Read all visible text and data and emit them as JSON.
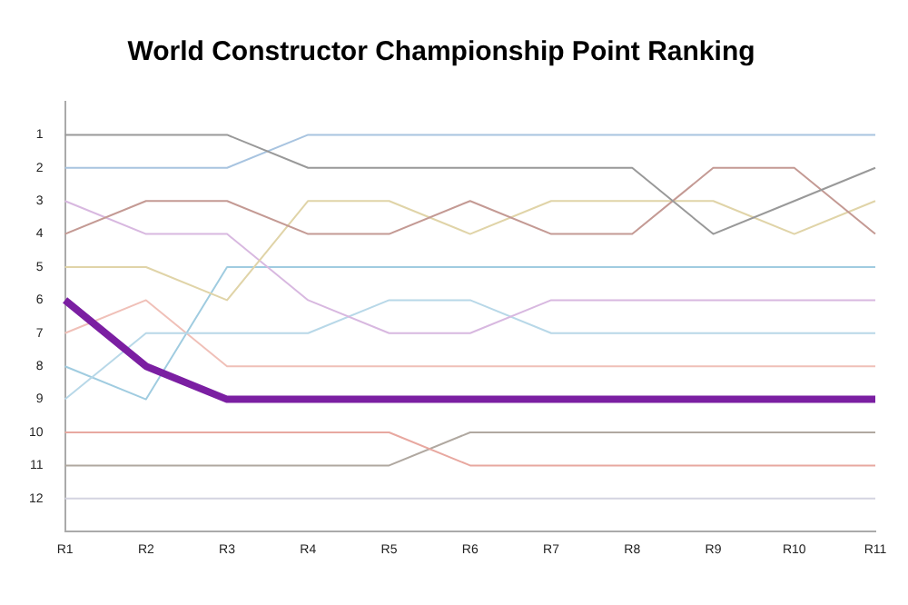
{
  "chart_data": {
    "type": "line",
    "title": "World Constructor Championship Point Ranking",
    "categories": [
      "R1",
      "R2",
      "R3",
      "R4",
      "R5",
      "R6",
      "R7",
      "R8",
      "R9",
      "R10",
      "R11"
    ],
    "ylim": [
      13,
      0
    ],
    "yticks": [
      1,
      2,
      3,
      4,
      5,
      6,
      7,
      8,
      9,
      10,
      11,
      12
    ],
    "grid": false,
    "legend": false,
    "marker": "none",
    "line_style": "solid",
    "series": [
      {
        "color": "#999999",
        "values": [
          1,
          1,
          1,
          2,
          2,
          2,
          2,
          2,
          4,
          3,
          2
        ]
      },
      {
        "color": "#a8c4e0",
        "values": [
          2,
          2,
          2,
          1,
          1,
          1,
          1,
          1,
          1,
          1,
          1
        ]
      },
      {
        "color": "#c49a94",
        "values": [
          4,
          3,
          3,
          4,
          4,
          3,
          4,
          4,
          2,
          2,
          4
        ]
      },
      {
        "color": "#e0d4a8",
        "values": [
          5,
          5,
          6,
          3,
          3,
          4,
          3,
          3,
          3,
          4,
          3
        ]
      },
      {
        "color": "#d8b8e0",
        "values": [
          3,
          4,
          4,
          6,
          7,
          7,
          6,
          6,
          6,
          6,
          6
        ]
      },
      {
        "color": "#b8d8e8",
        "values": [
          9,
          7,
          7,
          7,
          6,
          6,
          7,
          7,
          7,
          7,
          7
        ]
      },
      {
        "color": "#a0cce0",
        "values": [
          8,
          9,
          5,
          5,
          5,
          5,
          5,
          5,
          5,
          5,
          5
        ]
      },
      {
        "color": "#f0c0b8",
        "values": [
          7,
          6,
          8,
          8,
          8,
          8,
          8,
          8,
          8,
          8,
          8
        ]
      },
      {
        "color": "#7b1fa2",
        "values": [
          6,
          8,
          9,
          9,
          9,
          9,
          9,
          9,
          9,
          9,
          9
        ]
      },
      {
        "color": "#e8a8a0",
        "values": [
          10,
          10,
          10,
          10,
          10,
          11,
          11,
          11,
          11,
          11,
          11
        ]
      },
      {
        "color": "#b0a8a0",
        "values": [
          11,
          11,
          11,
          11,
          11,
          10,
          10,
          10,
          10,
          10,
          10
        ]
      },
      {
        "color": "#d4d4e0",
        "values": [
          12,
          12,
          12,
          12,
          12,
          12,
          12,
          12,
          12,
          12,
          12
        ]
      }
    ]
  }
}
